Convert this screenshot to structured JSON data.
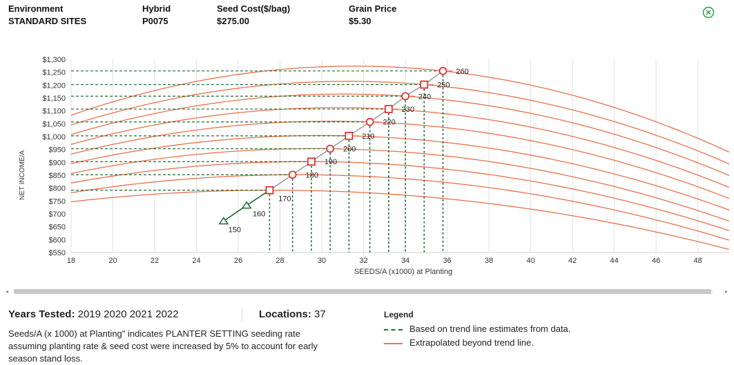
{
  "header": {
    "environment": {
      "label": "Environment",
      "value": "STANDARD SITES"
    },
    "hybrid": {
      "label": "Hybrid",
      "value": "P0075"
    },
    "seed_cost": {
      "label": "Seed Cost($/bag)",
      "value": "$275.00"
    },
    "grain_price": {
      "label": "Grain Price",
      "value": "$5.30"
    },
    "close_icon": "close-circle-icon"
  },
  "colors": {
    "trend": "#1e6b30",
    "extrapolated": "#e8704a",
    "marker": "#e21b1b",
    "axis_text": "#333333"
  },
  "chart_data": {
    "type": "line",
    "xlabel": "SEEDS/A (x1000) at Planting",
    "ylabel": "NET INCOME/A",
    "xlim": [
      18,
      49.5
    ],
    "ylim": [
      550,
      1300
    ],
    "x_ticks": [
      "18",
      "20",
      "22",
      "24",
      "26",
      "28",
      "30",
      "32",
      "34",
      "36",
      "38",
      "40",
      "42",
      "44",
      "46",
      "48"
    ],
    "y_ticks": [
      "$550",
      "$600",
      "$650",
      "$700",
      "$750",
      "$800",
      "$850",
      "$900",
      "$950",
      "$1,000",
      "$1,050",
      "$1,100",
      "$1,150",
      "$1,200",
      "$1,250",
      "$1,300"
    ],
    "grid": true,
    "trend_series": {
      "name": "Based on trend line estimates from data.",
      "points": [
        {
          "yield": 150,
          "x": 25.3,
          "y": 672,
          "marker": "triangle"
        },
        {
          "yield": 160,
          "x": 26.4,
          "y": 733,
          "marker": "triangle"
        },
        {
          "yield": 170,
          "x": 27.5,
          "y": 792,
          "marker": "square"
        },
        {
          "yield": 180,
          "x": 28.6,
          "y": 852,
          "marker": "circle"
        },
        {
          "yield": 190,
          "x": 29.5,
          "y": 903,
          "marker": "square"
        },
        {
          "yield": 200,
          "x": 30.4,
          "y": 953,
          "marker": "circle"
        },
        {
          "yield": 210,
          "x": 31.3,
          "y": 1003,
          "marker": "square"
        },
        {
          "yield": 220,
          "x": 32.3,
          "y": 1057,
          "marker": "circle"
        },
        {
          "yield": 230,
          "x": 33.2,
          "y": 1107,
          "marker": "square"
        },
        {
          "yield": 240,
          "x": 34.0,
          "y": 1157,
          "marker": "circle"
        },
        {
          "yield": 250,
          "x": 34.9,
          "y": 1202,
          "marker": "square"
        },
        {
          "yield": 260,
          "x": 35.8,
          "y": 1255,
          "marker": "circle"
        }
      ]
    },
    "extrapolated_series": {
      "name": "Extrapolated beyond trend line.",
      "curves": [
        {
          "yield": 170,
          "y_at_18": 747,
          "y_at_49_5": 562
        },
        {
          "yield": 180,
          "y_at_18": 782,
          "y_at_49_5": 598
        },
        {
          "yield": 190,
          "y_at_18": 820,
          "y_at_49_5": 635
        },
        {
          "yield": 200,
          "y_at_18": 857,
          "y_at_49_5": 672
        },
        {
          "yield": 210,
          "y_at_18": 895,
          "y_at_49_5": 715
        },
        {
          "yield": 220,
          "y_at_18": 932,
          "y_at_49_5": 760
        },
        {
          "yield": 230,
          "y_at_18": 970,
          "y_at_49_5": 803
        },
        {
          "yield": 240,
          "y_at_18": 1008,
          "y_at_49_5": 849
        },
        {
          "yield": 250,
          "y_at_18": 1045,
          "y_at_49_5": 894
        },
        {
          "yield": 260,
          "y_at_18": 1083,
          "y_at_49_5": 940
        }
      ]
    }
  },
  "footer": {
    "years_label": "Years Tested:",
    "years_value": "2019 2020 2021 2022",
    "locations_label": "Locations:",
    "locations_value": "37",
    "note": "Seeds/A (x 1000) at Planting\" indicates PLANTER SETTING seeding rate assuming planting rate & seed cost were increased by 5% to account for early season stand loss.",
    "legend_title": "Legend",
    "legend_trend": "Based on trend line estimates from data.",
    "legend_extrapolated": "Extrapolated beyond trend line."
  }
}
